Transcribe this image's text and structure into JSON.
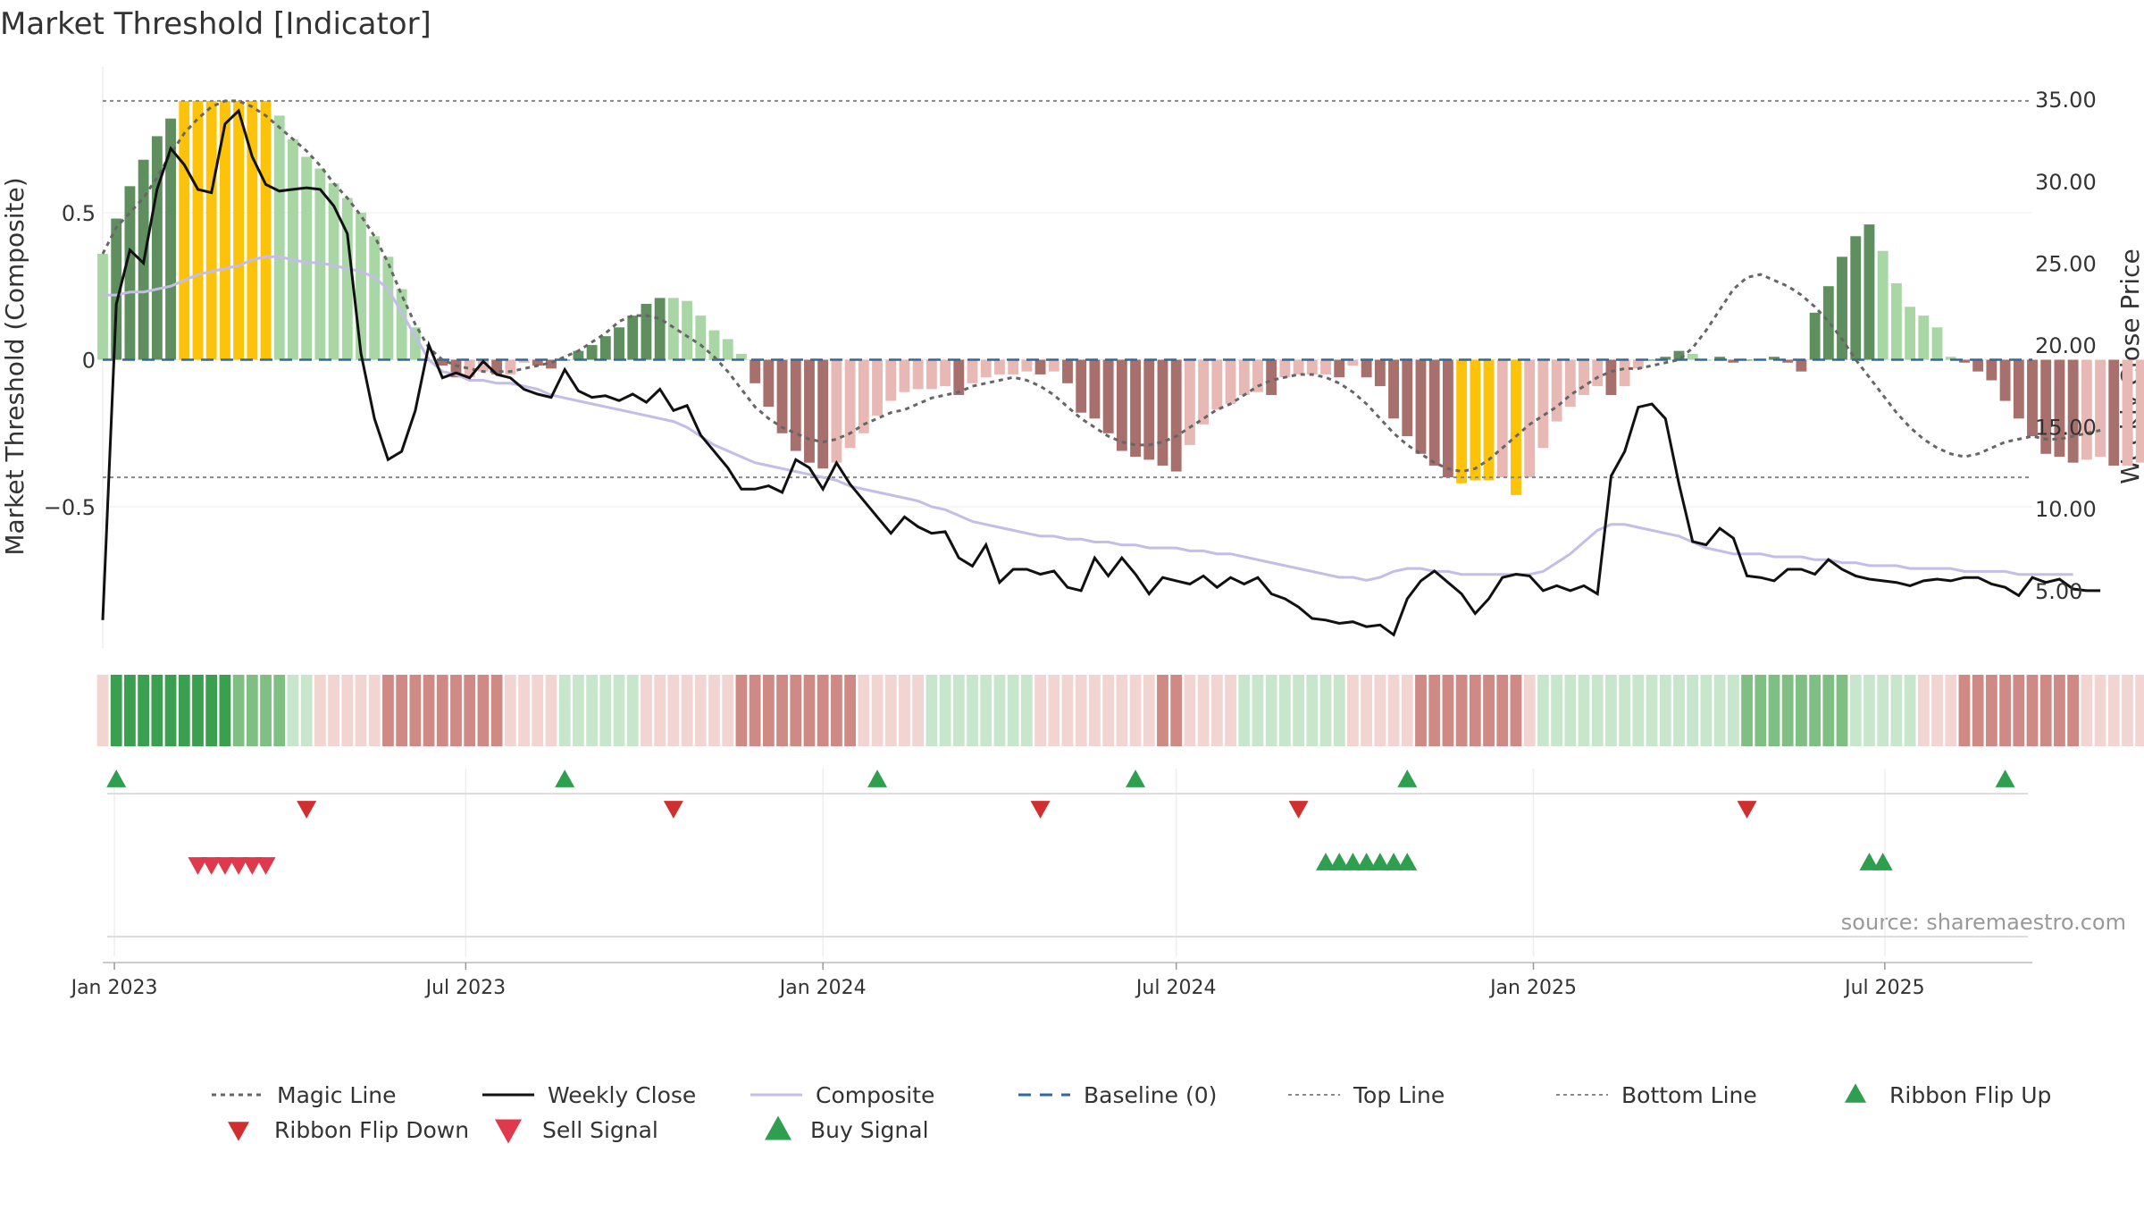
{
  "title": "Market Threshold [Indicator]",
  "source_note": "source: sharemaestro.com",
  "colors": {
    "bar_strong_green": "#5f8f5f",
    "bar_light_green": "#a9d6a5",
    "bar_strong_red": "#a8706c",
    "bar_light_red": "#e8b9b4",
    "bar_extreme": "#fcc30a",
    "weekly_close": "#111111",
    "composite": "#c3bde8",
    "magic_line": "#666666",
    "baseline": "#2e6a9e",
    "threshold_lines": "#888888",
    "flip_up": "#2e9e4f",
    "flip_down": "#d12f2f",
    "sell_signal": "#e0394d",
    "buy_signal": "#2e9e4f",
    "ribbon_green_strong": "#3a9f4f",
    "ribbon_green_light": "#c8e6cb",
    "ribbon_red_strong": "#cf8a86",
    "ribbon_red_light": "#f2d4d1"
  },
  "chart_data": {
    "type": "bar",
    "title": "Market Threshold [Indicator]",
    "ylabel": "Market Threshold (Composite)",
    "y2label": "Weekly Close Price",
    "ylim": [
      -0.98,
      0.98
    ],
    "y2lim": [
      1.5,
      36.7
    ],
    "yticks": [
      0.5,
      0,
      -0.5
    ],
    "ytick_labels": [
      "0.5",
      "0",
      "−0.5"
    ],
    "y2ticks": [
      35,
      30,
      25,
      20,
      15,
      10,
      5
    ],
    "y2tick_labels": [
      "35.00",
      "30.00",
      "25.00",
      "20.00",
      "15.00",
      "10.00",
      "5.00"
    ],
    "top_line": 0.88,
    "bottom_line": -0.4,
    "baseline": 0,
    "x_start": "2022-12-26",
    "x_end": "2025-09-15",
    "x_ticks": [
      "2023-01-01",
      "2023-07-01",
      "2024-01-01",
      "2024-07-01",
      "2025-01-01",
      "2025-07-01"
    ],
    "x_tick_labels": [
      "Jan 2023",
      "Jul 2023",
      "Jan 2024",
      "Jul 2024",
      "Jan 2025",
      "Jul 2025"
    ],
    "composite_bars": [
      0.36,
      0.48,
      0.59,
      0.68,
      0.76,
      0.82,
      0.88,
      0.88,
      0.88,
      0.88,
      0.88,
      0.88,
      0.88,
      0.83,
      0.75,
      0.69,
      0.65,
      0.6,
      0.55,
      0.5,
      0.42,
      0.35,
      0.24,
      0.11,
      0.0,
      -0.02,
      -0.06,
      -0.06,
      -0.04,
      -0.05,
      -0.05,
      -0.01,
      -0.02,
      -0.03,
      0.0,
      0.03,
      0.05,
      0.08,
      0.11,
      0.15,
      0.19,
      0.21,
      0.21,
      0.2,
      0.15,
      0.1,
      0.07,
      0.02,
      -0.08,
      -0.16,
      -0.25,
      -0.31,
      -0.35,
      -0.37,
      -0.35,
      -0.3,
      -0.25,
      -0.19,
      -0.14,
      -0.11,
      -0.1,
      -0.1,
      -0.09,
      -0.12,
      -0.08,
      -0.06,
      -0.05,
      -0.05,
      -0.04,
      -0.05,
      -0.04,
      -0.08,
      -0.18,
      -0.2,
      -0.25,
      -0.31,
      -0.33,
      -0.34,
      -0.36,
      -0.38,
      -0.29,
      -0.22,
      -0.17,
      -0.15,
      -0.12,
      -0.11,
      -0.12,
      -0.06,
      -0.05,
      -0.05,
      -0.05,
      -0.06,
      -0.02,
      -0.06,
      -0.09,
      -0.2,
      -0.26,
      -0.32,
      -0.36,
      -0.4,
      -0.42,
      -0.41,
      -0.41,
      -0.4,
      -0.46,
      -0.4,
      -0.3,
      -0.21,
      -0.16,
      -0.12,
      -0.09,
      -0.12,
      -0.09,
      -0.03,
      0.0,
      0.01,
      0.03,
      0.02,
      0.0,
      0.01,
      -0.01,
      0.0,
      0.0,
      0.01,
      -0.01,
      -0.04,
      0.16,
      0.25,
      0.35,
      0.42,
      0.46,
      0.37,
      0.26,
      0.18,
      0.15,
      0.11,
      0.01,
      -0.01,
      -0.04,
      -0.07,
      -0.14,
      -0.2,
      -0.26,
      -0.32,
      -0.33,
      -0.35,
      -0.34,
      -0.33,
      -0.36,
      -0.36,
      -0.35,
      -0.3,
      -0.27,
      -0.2,
      -0.17,
      -0.16,
      -0.16,
      -0.18,
      -0.23,
      -0.27,
      -0.23,
      -0.17,
      -0.13,
      -0.18,
      -0.24,
      -0.28,
      -0.23,
      -0.18
    ],
    "weekly_close": [
      3.2,
      22.5,
      25.8,
      25.0,
      29.5,
      32.0,
      31.0,
      29.5,
      29.3,
      33.5,
      34.3,
      31.5,
      29.8,
      29.4,
      29.5,
      29.6,
      29.5,
      28.5,
      26.8,
      19.5,
      15.5,
      13.0,
      13.5,
      16.0,
      20.0,
      18.0,
      18.3,
      18.0,
      19.0,
      18.2,
      18.0,
      17.3,
      17.0,
      16.8,
      18.5,
      17.2,
      16.8,
      16.9,
      16.6,
      17.0,
      16.5,
      17.3,
      16.0,
      16.3,
      14.5,
      13.5,
      12.5,
      11.2,
      11.2,
      11.4,
      11.0,
      13.0,
      12.5,
      11.2,
      12.8,
      11.5,
      10.5,
      9.5,
      8.5,
      9.5,
      8.9,
      8.5,
      8.6,
      7.0,
      6.5,
      7.8,
      5.5,
      6.3,
      6.3,
      6.0,
      6.2,
      5.2,
      5.0,
      7.0,
      5.9,
      7.0,
      6.0,
      4.8,
      5.8,
      5.6,
      5.4,
      5.9,
      5.2,
      5.8,
      5.4,
      5.8,
      4.8,
      4.5,
      4.0,
      3.3,
      3.2,
      3.0,
      3.1,
      2.8,
      2.9,
      2.3,
      4.5,
      5.6,
      6.2,
      5.5,
      4.8,
      3.6,
      4.5,
      5.8,
      6.0,
      5.9,
      5.0,
      5.3,
      5.0,
      5.3,
      4.8,
      12.0,
      13.5,
      16.2,
      16.4,
      15.5,
      11.5,
      8.0,
      7.8,
      8.8,
      8.2,
      5.9,
      5.8,
      5.6,
      6.3,
      6.3,
      6.0,
      6.9,
      6.3,
      5.9,
      5.7,
      5.6,
      5.5,
      5.3,
      5.6,
      5.7,
      5.6,
      5.8,
      5.8,
      5.4,
      5.2,
      4.7,
      5.8,
      5.5,
      5.7,
      5.1,
      5.0,
      5.0
    ],
    "composite_line": [
      0.22,
      0.22,
      0.23,
      0.23,
      0.24,
      0.25,
      0.27,
      0.29,
      0.3,
      0.31,
      0.32,
      0.34,
      0.35,
      0.35,
      0.34,
      0.33,
      0.33,
      0.32,
      0.31,
      0.3,
      0.28,
      0.24,
      0.16,
      0.08,
      0.0,
      -0.04,
      -0.05,
      -0.07,
      -0.07,
      -0.08,
      -0.08,
      -0.09,
      -0.1,
      -0.12,
      -0.13,
      -0.14,
      -0.15,
      -0.16,
      -0.17,
      -0.18,
      -0.19,
      -0.2,
      -0.21,
      -0.23,
      -0.26,
      -0.29,
      -0.31,
      -0.33,
      -0.35,
      -0.36,
      -0.37,
      -0.38,
      -0.39,
      -0.4,
      -0.41,
      -0.43,
      -0.44,
      -0.45,
      -0.46,
      -0.47,
      -0.48,
      -0.5,
      -0.51,
      -0.53,
      -0.55,
      -0.56,
      -0.57,
      -0.58,
      -0.59,
      -0.6,
      -0.6,
      -0.61,
      -0.61,
      -0.62,
      -0.62,
      -0.63,
      -0.63,
      -0.64,
      -0.64,
      -0.64,
      -0.65,
      -0.65,
      -0.66,
      -0.66,
      -0.67,
      -0.68,
      -0.69,
      -0.7,
      -0.71,
      -0.72,
      -0.73,
      -0.74,
      -0.74,
      -0.75,
      -0.74,
      -0.72,
      -0.71,
      -0.71,
      -0.72,
      -0.72,
      -0.73,
      -0.73,
      -0.73,
      -0.73,
      -0.73,
      -0.73,
      -0.72,
      -0.69,
      -0.66,
      -0.62,
      -0.58,
      -0.56,
      -0.56,
      -0.57,
      -0.58,
      -0.59,
      -0.6,
      -0.62,
      -0.64,
      -0.65,
      -0.66,
      -0.66,
      -0.66,
      -0.67,
      -0.67,
      -0.67,
      -0.68,
      -0.68,
      -0.69,
      -0.69,
      -0.7,
      -0.7,
      -0.7,
      -0.71,
      -0.71,
      -0.71,
      -0.71,
      -0.72,
      -0.72,
      -0.72,
      -0.72,
      -0.73,
      -0.73,
      -0.73,
      -0.73,
      -0.73
    ],
    "magic_line": [
      0.36,
      0.45,
      0.5,
      0.55,
      0.62,
      0.7,
      0.77,
      0.82,
      0.86,
      0.88,
      0.88,
      0.86,
      0.83,
      0.79,
      0.75,
      0.71,
      0.66,
      0.6,
      0.55,
      0.49,
      0.42,
      0.33,
      0.22,
      0.12,
      0.04,
      0.0,
      -0.02,
      -0.03,
      -0.04,
      -0.04,
      -0.04,
      -0.03,
      -0.02,
      -0.01,
      0.01,
      0.03,
      0.06,
      0.09,
      0.13,
      0.15,
      0.15,
      0.14,
      0.11,
      0.08,
      0.05,
      0.01,
      -0.04,
      -0.1,
      -0.16,
      -0.2,
      -0.23,
      -0.25,
      -0.27,
      -0.28,
      -0.27,
      -0.25,
      -0.22,
      -0.2,
      -0.18,
      -0.17,
      -0.15,
      -0.13,
      -0.12,
      -0.11,
      -0.09,
      -0.08,
      -0.07,
      -0.06,
      -0.07,
      -0.09,
      -0.12,
      -0.16,
      -0.2,
      -0.23,
      -0.26,
      -0.28,
      -0.29,
      -0.29,
      -0.28,
      -0.26,
      -0.23,
      -0.2,
      -0.17,
      -0.15,
      -0.12,
      -0.09,
      -0.07,
      -0.06,
      -0.05,
      -0.05,
      -0.06,
      -0.08,
      -0.11,
      -0.15,
      -0.2,
      -0.25,
      -0.29,
      -0.32,
      -0.35,
      -0.37,
      -0.38,
      -0.37,
      -0.34,
      -0.3,
      -0.26,
      -0.22,
      -0.19,
      -0.16,
      -0.12,
      -0.09,
      -0.06,
      -0.04,
      -0.03,
      -0.03,
      -0.02,
      -0.01,
      0.0,
      0.04,
      0.1,
      0.17,
      0.24,
      0.28,
      0.29,
      0.27,
      0.25,
      0.22,
      0.18,
      0.13,
      0.07,
      0.0,
      -0.06,
      -0.12,
      -0.18,
      -0.23,
      -0.27,
      -0.3,
      -0.32,
      -0.33,
      -0.32,
      -0.3,
      -0.28,
      -0.27,
      -0.26,
      -0.27,
      -0.27,
      -0.26,
      -0.25,
      -0.24
    ],
    "ribbon_levels": [
      -1,
      3,
      3,
      3,
      3,
      3,
      3,
      3,
      3,
      3,
      2,
      2,
      2,
      2,
      1,
      1,
      -1,
      -1,
      -1,
      -1,
      -1,
      -2,
      -2,
      -2,
      -2,
      -2,
      -2,
      -2,
      -2,
      -2,
      -1,
      -1,
      -1,
      -1,
      1,
      1,
      1,
      1,
      1,
      1,
      -1,
      -1,
      -1,
      -1,
      -1,
      -1,
      -1,
      -2,
      -2,
      -2,
      -2,
      -2,
      -2,
      -2,
      -2,
      -2,
      -1,
      -1,
      -1,
      -1,
      -1,
      1,
      1,
      1,
      1,
      1,
      1,
      1,
      1,
      -1,
      -1,
      -1,
      -1,
      -1,
      -1,
      -1,
      -1,
      -1,
      -2,
      -2,
      -1,
      -1,
      -1,
      -1,
      1,
      1,
      1,
      1,
      1,
      1,
      1,
      1,
      -1,
      -1,
      -1,
      -1,
      -1,
      -2,
      -2,
      -2,
      -2,
      -2,
      -2,
      -2,
      -2,
      -1,
      1,
      1,
      1,
      1,
      1,
      1,
      1,
      1,
      1,
      1,
      1,
      1,
      1,
      1,
      1,
      2,
      2,
      2,
      2,
      2,
      2,
      2,
      2,
      1,
      1,
      1,
      1,
      1,
      -1,
      -1,
      -1,
      -2,
      -2,
      -2,
      -2,
      -2,
      -2,
      -2,
      -2,
      -2,
      -1,
      -1,
      -1,
      -1,
      -1,
      -1,
      -1,
      -1,
      -1,
      -1,
      -1,
      -1,
      1,
      1,
      1,
      1,
      1
    ],
    "ribbon_flip_up": [
      "2023-01-02",
      "2023-08-21",
      "2024-01-29",
      "2024-06-10",
      "2024-10-28",
      "2025-09-01"
    ],
    "ribbon_flip_down": [
      "2023-04-10",
      "2023-10-16",
      "2024-04-22",
      "2024-09-02",
      "2025-04-21"
    ],
    "sell_signal": [
      "2023-02-13",
      "2023-02-20",
      "2023-02-27",
      "2023-03-06",
      "2023-03-13",
      "2023-03-20"
    ],
    "buy_signal": [
      "2024-09-16",
      "2024-09-23",
      "2024-09-30",
      "2024-10-07",
      "2024-10-14",
      "2024-10-21",
      "2024-10-28",
      "2025-06-23",
      "2025-06-30"
    ],
    "legend": [
      "Magic Line",
      "Weekly Close",
      "Composite",
      "Baseline (0)",
      "Top Line",
      "Bottom Line",
      "Ribbon Flip Up",
      "Ribbon Flip Down",
      "Sell Signal",
      "Buy Signal"
    ],
    "grid": true,
    "legend_placement": "bottom"
  }
}
